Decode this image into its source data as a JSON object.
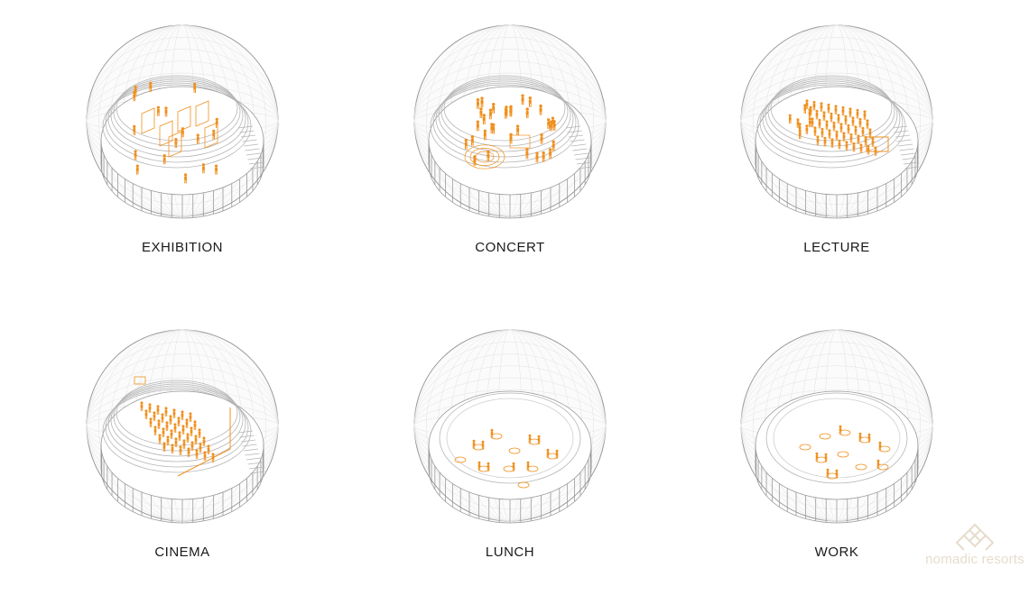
{
  "accent_color": "#f0901e",
  "line_color": "#9a9a9a",
  "panels": [
    {
      "label": "EXHIBITION",
      "mode": "exhibition"
    },
    {
      "label": "CONCERT",
      "mode": "concert"
    },
    {
      "label": "LECTURE",
      "mode": "lecture"
    },
    {
      "label": "CINEMA",
      "mode": "cinema"
    },
    {
      "label": "LUNCH",
      "mode": "lunch"
    },
    {
      "label": "WORK",
      "mode": "work"
    }
  ],
  "logo": {
    "text": "nomadic resorts",
    "icon": "knot-icon"
  }
}
